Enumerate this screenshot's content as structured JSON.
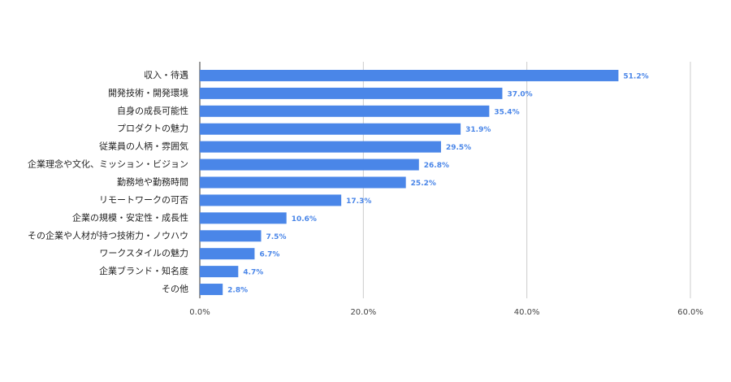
{
  "chart_data": {
    "type": "hbar",
    "categories": [
      "収入・待遇",
      "開発技術・開発環境",
      "自身の成長可能性",
      "プロダクトの魅力",
      "従業員の人柄・雰囲気",
      "企業理念や文化、ミッション・ビジョン",
      "勤務地や勤務時間",
      "リモートワークの可否",
      "企業の規模・安定性・成長性",
      "その企業や人材が持つ技術力・ノウハウ",
      "ワークスタイルの魅力",
      "企業ブランド・知名度",
      "その他"
    ],
    "values": [
      51.2,
      37.0,
      35.4,
      31.9,
      29.5,
      26.8,
      25.2,
      17.3,
      10.6,
      7.5,
      6.7,
      4.7,
      2.8
    ],
    "value_labels": [
      "51.2%",
      "37.0%",
      "35.4%",
      "31.9%",
      "29.5%",
      "26.8%",
      "25.2%",
      "17.3%",
      "10.6%",
      "7.5%",
      "6.7%",
      "4.7%",
      "2.8%"
    ],
    "color": "#4a86e8",
    "xlim": [
      0,
      60
    ],
    "xticks": [
      {
        "value": 0,
        "label": "0.0%"
      },
      {
        "value": 20,
        "label": "20.0%"
      },
      {
        "value": 40,
        "label": "40.0%"
      },
      {
        "value": 60,
        "label": "60.0%"
      }
    ],
    "grid": true
  }
}
